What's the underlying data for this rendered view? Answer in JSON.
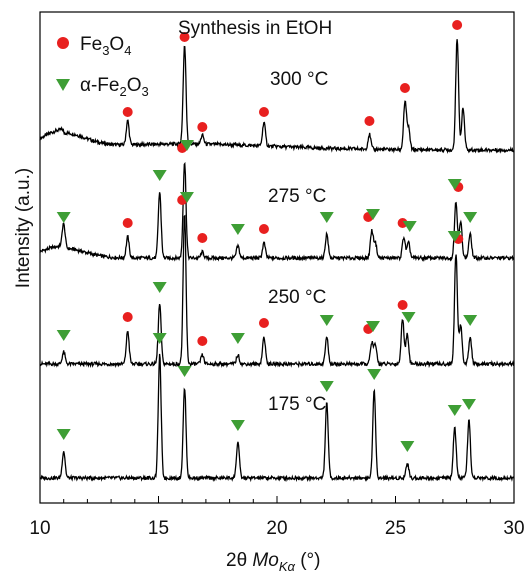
{
  "chart_data": {
    "type": "line",
    "title": "Synthesis in EtOH",
    "xlabel": "2θ Mo_Kα (°)",
    "ylabel": "Intensity (a.u.)",
    "xlim": [
      10,
      30
    ],
    "xticks": [
      10,
      15,
      20,
      25,
      30
    ],
    "yticks": false,
    "grid": false,
    "legend_position": "top-left",
    "legend": [
      {
        "label": "Fe3O4",
        "marker": "circle",
        "color": "#e8201f"
      },
      {
        "label": "α-Fe2O3",
        "marker": "triangle-down",
        "color": "#3e9e35"
      }
    ],
    "colors": {
      "line": "#000000",
      "fe3o4": "#e8201f",
      "hematite": "#3e9e35"
    },
    "series": [
      {
        "name": "300 °C",
        "peaks": [
          [
            13.7,
            0.08
          ],
          [
            16.1,
            0.33
          ],
          [
            16.85,
            0.03
          ],
          [
            19.45,
            0.08
          ],
          [
            23.9,
            0.05
          ],
          [
            25.4,
            0.16
          ],
          [
            25.55,
            0.07
          ],
          [
            27.6,
            0.37
          ],
          [
            27.85,
            0.14
          ]
        ],
        "fe3o4_markers": [
          13.7,
          16.1,
          16.85,
          19.45,
          23.9,
          25.4,
          27.6
        ],
        "hematite_markers": []
      },
      {
        "name": "275 °C",
        "peaks": [
          [
            11.0,
            0.08
          ],
          [
            13.7,
            0.07
          ],
          [
            15.05,
            0.22
          ],
          [
            16.1,
            0.32
          ],
          [
            16.85,
            0.02
          ],
          [
            18.35,
            0.04
          ],
          [
            19.45,
            0.05
          ],
          [
            22.1,
            0.08
          ],
          [
            24.0,
            0.09
          ],
          [
            24.15,
            0.05
          ],
          [
            25.35,
            0.07
          ],
          [
            25.55,
            0.05
          ],
          [
            27.55,
            0.19
          ],
          [
            27.75,
            0.12
          ],
          [
            28.15,
            0.08
          ]
        ],
        "fe3o4_markers": [
          13.7,
          16.0,
          16.85,
          19.45,
          23.85,
          25.3,
          27.65
        ],
        "hematite_markers": [
          11.0,
          15.05,
          16.2,
          18.35,
          22.1,
          24.05,
          25.6,
          27.5,
          28.15
        ]
      },
      {
        "name": "250 °C",
        "peaks": [
          [
            11.0,
            0.04
          ],
          [
            13.7,
            0.11
          ],
          [
            15.05,
            0.2
          ],
          [
            16.1,
            0.5
          ],
          [
            16.85,
            0.03
          ],
          [
            18.35,
            0.03
          ],
          [
            19.45,
            0.09
          ],
          [
            22.1,
            0.09
          ],
          [
            24.0,
            0.07
          ],
          [
            24.15,
            0.06
          ],
          [
            25.3,
            0.15
          ],
          [
            25.5,
            0.1
          ],
          [
            27.55,
            0.37
          ],
          [
            27.75,
            0.13
          ],
          [
            28.15,
            0.09
          ]
        ],
        "fe3o4_markers": [
          13.7,
          16.0,
          16.85,
          19.45,
          23.85,
          25.3,
          27.65
        ],
        "hematite_markers": [
          11.0,
          15.05,
          16.2,
          18.35,
          22.1,
          24.05,
          25.55,
          27.5,
          28.15
        ]
      },
      {
        "name": "175 °C",
        "peaks": [
          [
            11.0,
            0.09
          ],
          [
            15.05,
            0.41
          ],
          [
            16.1,
            0.3
          ],
          [
            18.35,
            0.12
          ],
          [
            22.1,
            0.25
          ],
          [
            24.1,
            0.29
          ],
          [
            25.5,
            0.05
          ],
          [
            27.5,
            0.17
          ],
          [
            28.1,
            0.19
          ]
        ],
        "fe3o4_markers": [],
        "hematite_markers": [
          11.0,
          15.05,
          16.1,
          18.35,
          22.1,
          24.1,
          25.5,
          27.5,
          28.1
        ]
      }
    ]
  },
  "labels": {
    "title": "Synthesis in EtOH",
    "legend_fe3o4": "Fe3O4",
    "legend_hematite": "α-Fe2O3",
    "x_axis": "2θ Mo_Kα (°)",
    "y_axis": "Intensity (a.u.)",
    "series_labels": [
      "300 °C",
      "275 °C",
      "250 °C",
      "175 °C"
    ]
  }
}
